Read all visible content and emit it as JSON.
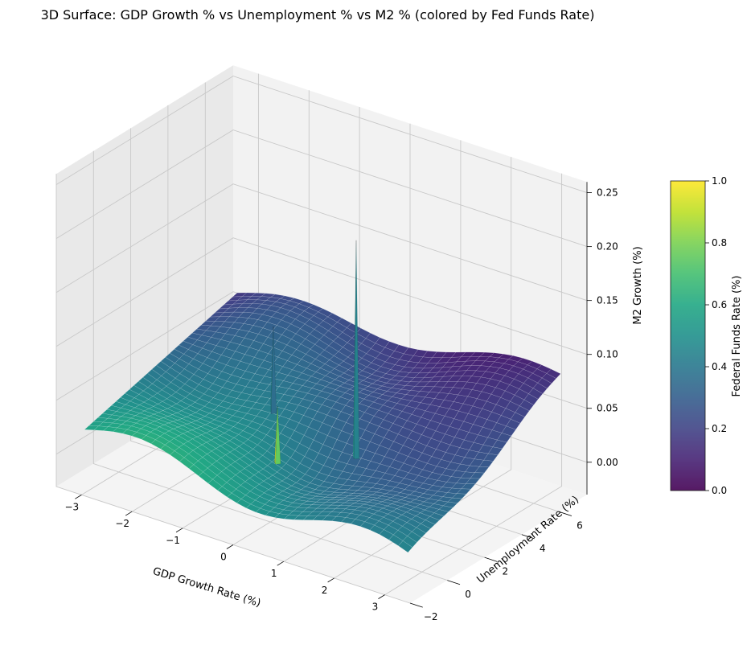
{
  "chart_data": {
    "type": "surface3d",
    "title": "3D Surface: GDP Growth % vs Unemployment % vs M2 % (colored by Fed Funds Rate)",
    "xlabel": "GDP Growth Rate (%)",
    "ylabel": "Unemployment Rate (%)",
    "zlabel": "M2 Growth (%)",
    "colorbar_label": "Federal Funds Rate (%)",
    "colormap": "viridis",
    "xlim": [
      -3.5,
      3.5
    ],
    "ylim": [
      -2,
      7.5
    ],
    "zlim": [
      -0.03,
      0.26
    ],
    "clim": [
      0,
      1
    ],
    "x_ticks": [
      -3,
      -2,
      -1,
      0,
      1,
      2,
      3
    ],
    "y_ticks": [
      -2,
      0,
      2,
      4,
      6
    ],
    "z_ticks": [
      0.0,
      0.05,
      0.1,
      0.15,
      0.2,
      0.25
    ],
    "z_tick_labels": [
      "0.00",
      "0.05",
      "0.10",
      "0.15",
      "0.20",
      "0.25"
    ],
    "colorbar_ticks": [
      0.0,
      0.2,
      0.4,
      0.6,
      0.8,
      1.0
    ],
    "colorbar_tick_labels": [
      "0.0",
      "0.2",
      "0.4",
      "0.6",
      "0.8",
      "1.0"
    ],
    "x_tick_labels": [
      "−3",
      "−2",
      "−1",
      "0",
      "1",
      "2",
      "3"
    ],
    "y_tick_labels": [
      "−2",
      "0",
      "2",
      "4",
      "6"
    ],
    "grid": true,
    "surface_extent": {
      "x_range": [
        -3.2,
        3.2
      ],
      "y_range": [
        -1.3,
        6.9
      ],
      "corner_z": {
        "x_min_y_min": 0.02,
        "x_max_y_min": 0.0,
        "x_min_y_max": 0.06,
        "x_max_y_max": 0.08
      },
      "spikes": [
        {
          "x": 0.85,
          "y": 2.3,
          "z": 0.22,
          "color_value": 0.55
        },
        {
          "x": -0.9,
          "y": 2.6,
          "z": 0.11,
          "color_value": 0.45
        },
        {
          "x": -0.3,
          "y": 1.2,
          "z": 0.06,
          "color_value": 0.95
        }
      ]
    },
    "colors": {
      "pane": "#f2f2f2",
      "pane_side": "#e9e9e9",
      "grid": "#c8c8c8",
      "edge": "#ffffff"
    }
  }
}
